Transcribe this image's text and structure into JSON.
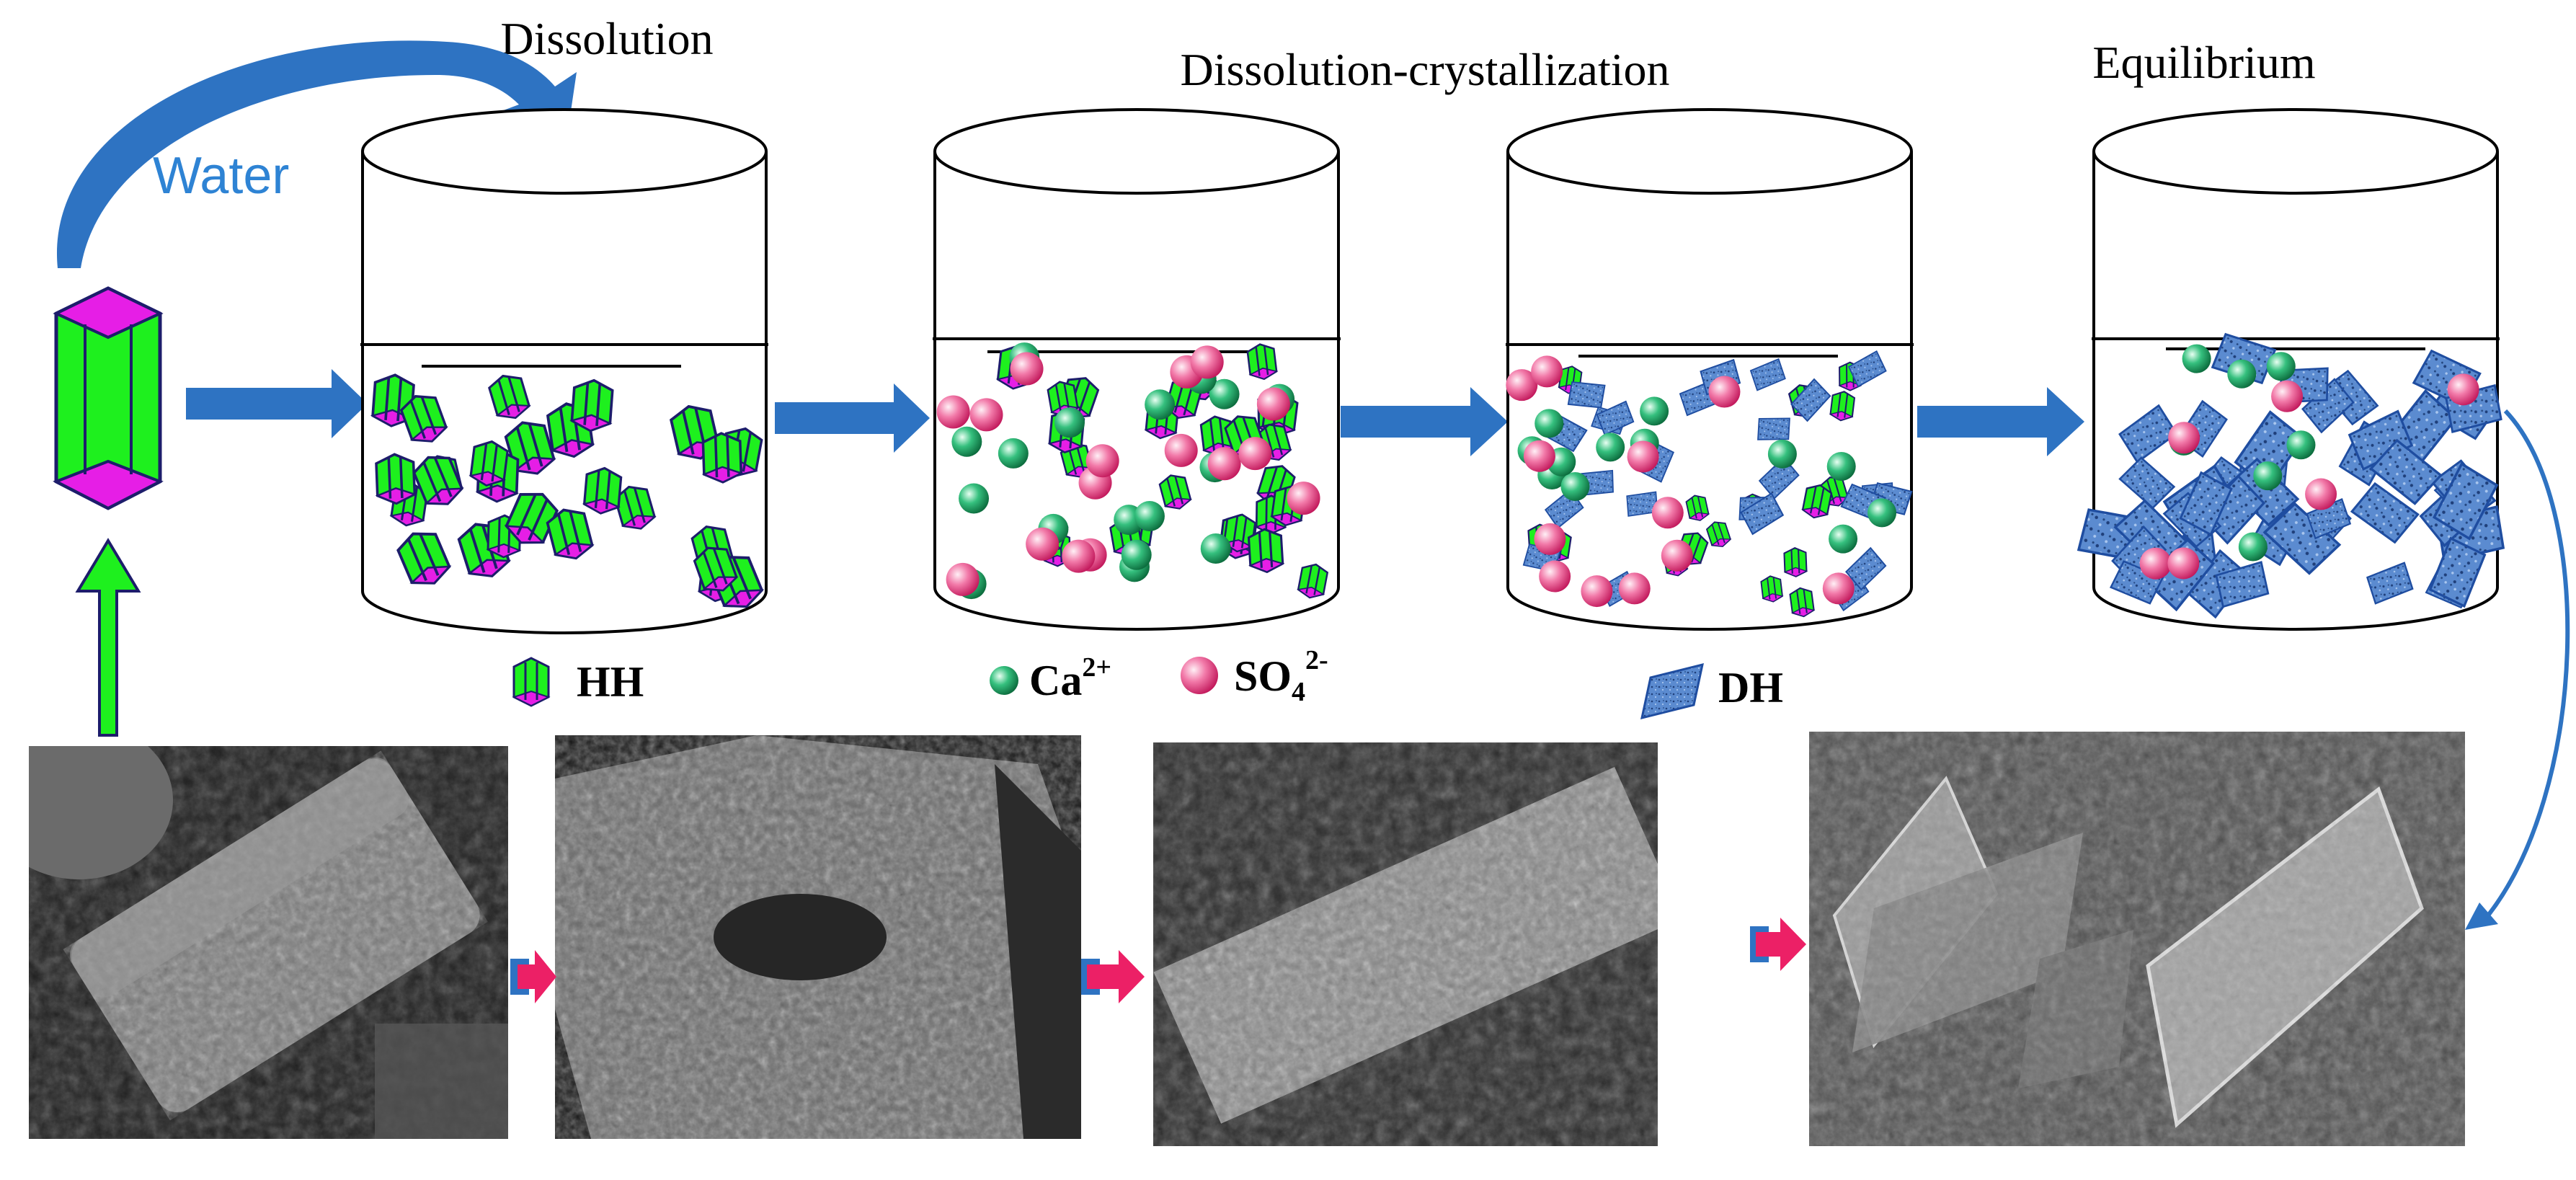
{
  "titles": {
    "dissolution": "Dissolution",
    "dissolution_crystallization": "Dissolution-crystallization",
    "equilibrium": "Equilibrium"
  },
  "water_label": "Water",
  "legend": {
    "hh": "HH",
    "ca_base": "Ca",
    "ca_sup": "2+",
    "so4_base": "SO",
    "so4_sub": "4",
    "so4_sup": "2-",
    "dh": "DH"
  },
  "colors": {
    "hh_green": "#1ef01e",
    "hh_magenta": "#e61ee6",
    "arrow_blue": "#2e73c2",
    "ca_green": "#21a86a",
    "so4_pink": "#ee3d86",
    "dh_blue": "#4f7fc4",
    "water_text": "#2e83d4",
    "small_arrow_pink": "#ec2066"
  },
  "icons": {
    "crystal": "hh-crystal-icon",
    "ca_ion": "ca-ion-icon",
    "so4_ion": "so4-ion-icon",
    "dh_crystal": "dh-crystal-icon"
  }
}
